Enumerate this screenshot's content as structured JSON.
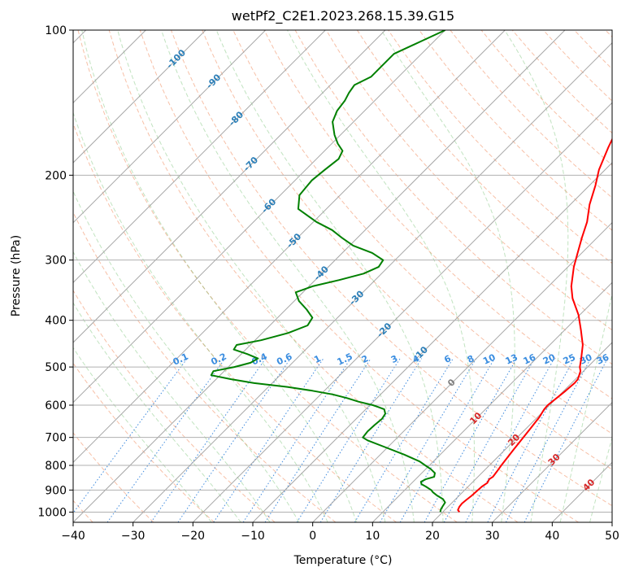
{
  "chart_data": {
    "type": "line",
    "title": "wetPf2_C2E1.2023.268.15.39.G15",
    "xlabel": "Temperature (°C)",
    "ylabel": "Pressure (hPa)",
    "xlim": [
      -40,
      50
    ],
    "ylim": [
      1050,
      100
    ],
    "y_scale": "log",
    "x_ticks": [
      "−40",
      "−30",
      "−20",
      "−10",
      "0",
      "10",
      "20",
      "30",
      "40",
      "50"
    ],
    "x_tick_values": [
      -40,
      -30,
      -20,
      -10,
      0,
      10,
      20,
      30,
      40,
      50
    ],
    "y_ticks": [
      "100",
      "200",
      "300",
      "400",
      "500",
      "600",
      "700",
      "800",
      "900",
      "1000"
    ],
    "y_tick_values": [
      100,
      200,
      300,
      400,
      500,
      600,
      700,
      800,
      900,
      1000
    ],
    "skew": 45,
    "grid": true,
    "dry_adiabat_labels": [
      {
        "text": "-100",
        "t": -100,
        "p": 115
      },
      {
        "text": "-90",
        "t": -90,
        "p": 128
      },
      {
        "text": "-80",
        "t": -80,
        "p": 153
      },
      {
        "text": "-70",
        "t": -70,
        "p": 190
      },
      {
        "text": "-60",
        "t": -60,
        "p": 232
      },
      {
        "text": "-50",
        "t": -50,
        "p": 274
      },
      {
        "text": "-40",
        "t": -40,
        "p": 320
      },
      {
        "text": "-30",
        "t": -30,
        "p": 360
      },
      {
        "text": "-20",
        "t": -20,
        "p": 420
      },
      {
        "text": "-10",
        "t": -10,
        "p": 470
      }
    ],
    "moist_adiabat_labels": [
      {
        "text": "0",
        "t": 0,
        "p": 540
      },
      {
        "text": "10",
        "t": 10,
        "p": 640
      },
      {
        "text": "20",
        "t": 20,
        "p": 710
      },
      {
        "text": "30",
        "t": 30,
        "p": 780
      },
      {
        "text": "40",
        "t": 40,
        "p": 880
      }
    ],
    "mixing_ratio_labels": [
      "0.1",
      "0.2",
      "0.4",
      "0.6",
      "1",
      "1.5",
      "2",
      "3",
      "4",
      "6",
      "8",
      "10",
      "13",
      "16",
      "20",
      "25",
      "30",
      "36"
    ],
    "series": [
      {
        "color": "#ff0000",
        "points": [
          [
            1000,
            22.8
          ],
          [
            990,
            22.2
          ],
          [
            975,
            21.9
          ],
          [
            960,
            21.8
          ],
          [
            945,
            21.9
          ],
          [
            925,
            22.1
          ],
          [
            905,
            22.2
          ],
          [
            885,
            22.3
          ],
          [
            870,
            22.6
          ],
          [
            855,
            22.3
          ],
          [
            845,
            22.5
          ],
          [
            825,
            22.3
          ],
          [
            800,
            22.0
          ],
          [
            770,
            21.7
          ],
          [
            740,
            21.4
          ],
          [
            700,
            21.0
          ],
          [
            670,
            20.7
          ],
          [
            635,
            20.3
          ],
          [
            612,
            19.8
          ],
          [
            600,
            19.7
          ],
          [
            580,
            20.0
          ],
          [
            560,
            20.3
          ],
          [
            540,
            20.5
          ],
          [
            530,
            20.4
          ],
          [
            510,
            19.5
          ],
          [
            500,
            18.7
          ],
          [
            480,
            17.5
          ],
          [
            450,
            15.5
          ],
          [
            420,
            12.8
          ],
          [
            390,
            9.8
          ],
          [
            360,
            6.0
          ],
          [
            340,
            3.8
          ],
          [
            310,
            1.0
          ],
          [
            290,
            -0.7
          ],
          [
            270,
            -2.5
          ],
          [
            250,
            -4.3
          ],
          [
            230,
            -6.8
          ],
          [
            210,
            -9.0
          ],
          [
            195,
            -11.0
          ],
          [
            175,
            -13.2
          ],
          [
            162,
            -14.6
          ],
          [
            150,
            -16.0
          ],
          [
            147,
            -16.0
          ],
          [
            142,
            -14.0
          ],
          [
            136,
            -11.6
          ],
          [
            130,
            -10.0
          ],
          [
            122,
            -9.3
          ],
          [
            115,
            -8.3
          ],
          [
            110,
            -7.5
          ],
          [
            105,
            -7.5
          ],
          [
            100,
            -7.7
          ]
        ]
      },
      {
        "color": "#008000",
        "points": [
          [
            1000,
            19.6
          ],
          [
            985,
            19.2
          ],
          [
            970,
            19.0
          ],
          [
            955,
            18.8
          ],
          [
            940,
            17.9
          ],
          [
            925,
            16.4
          ],
          [
            910,
            15.1
          ],
          [
            900,
            14.4
          ],
          [
            885,
            12.9
          ],
          [
            875,
            11.8
          ],
          [
            865,
            11.3
          ],
          [
            855,
            11.7
          ],
          [
            845,
            12.7
          ],
          [
            830,
            12.2
          ],
          [
            815,
            10.9
          ],
          [
            800,
            9.3
          ],
          [
            785,
            7.7
          ],
          [
            760,
            4.0
          ],
          [
            730,
            -1.0
          ],
          [
            710,
            -4.5
          ],
          [
            700,
            -5.8
          ],
          [
            680,
            -6.0
          ],
          [
            660,
            -5.9
          ],
          [
            640,
            -5.7
          ],
          [
            625,
            -6.0
          ],
          [
            612,
            -6.9
          ],
          [
            605,
            -8.4
          ],
          [
            600,
            -9.5
          ],
          [
            590,
            -12.5
          ],
          [
            580,
            -15.0
          ],
          [
            570,
            -18.0
          ],
          [
            560,
            -22.0
          ],
          [
            550,
            -26.8
          ],
          [
            540,
            -33.0
          ],
          [
            530,
            -37.5
          ],
          [
            520,
            -41.5
          ],
          [
            510,
            -41.8
          ],
          [
            500,
            -39.0
          ],
          [
            490,
            -37.0
          ],
          [
            480,
            -36.5
          ],
          [
            470,
            -39.0
          ],
          [
            460,
            -42.0
          ],
          [
            450,
            -42.3
          ],
          [
            440,
            -39.0
          ],
          [
            425,
            -35.7
          ],
          [
            410,
            -33.7
          ],
          [
            395,
            -34.2
          ],
          [
            380,
            -36.5
          ],
          [
            365,
            -39.2
          ],
          [
            350,
            -41.2
          ],
          [
            340,
            -39.4
          ],
          [
            330,
            -36.0
          ],
          [
            320,
            -33.0
          ],
          [
            310,
            -31.6
          ],
          [
            300,
            -32.0
          ],
          [
            290,
            -35.0
          ],
          [
            280,
            -39.4
          ],
          [
            270,
            -42.5
          ],
          [
            260,
            -45.5
          ],
          [
            250,
            -49.5
          ],
          [
            235,
            -54.7
          ],
          [
            220,
            -56.8
          ],
          [
            205,
            -57.2
          ],
          [
            195,
            -56.8
          ],
          [
            185,
            -56.3
          ],
          [
            178,
            -57.0
          ],
          [
            172,
            -59.0
          ],
          [
            165,
            -61.0
          ],
          [
            155,
            -63.5
          ],
          [
            147,
            -64.6
          ],
          [
            140,
            -65.0
          ],
          [
            135,
            -65.6
          ],
          [
            130,
            -66.0
          ],
          [
            125,
            -64.6
          ],
          [
            118,
            -64.6
          ],
          [
            112,
            -64.6
          ],
          [
            105,
            -62.0
          ],
          [
            100,
            -60.0
          ]
        ]
      }
    ]
  }
}
